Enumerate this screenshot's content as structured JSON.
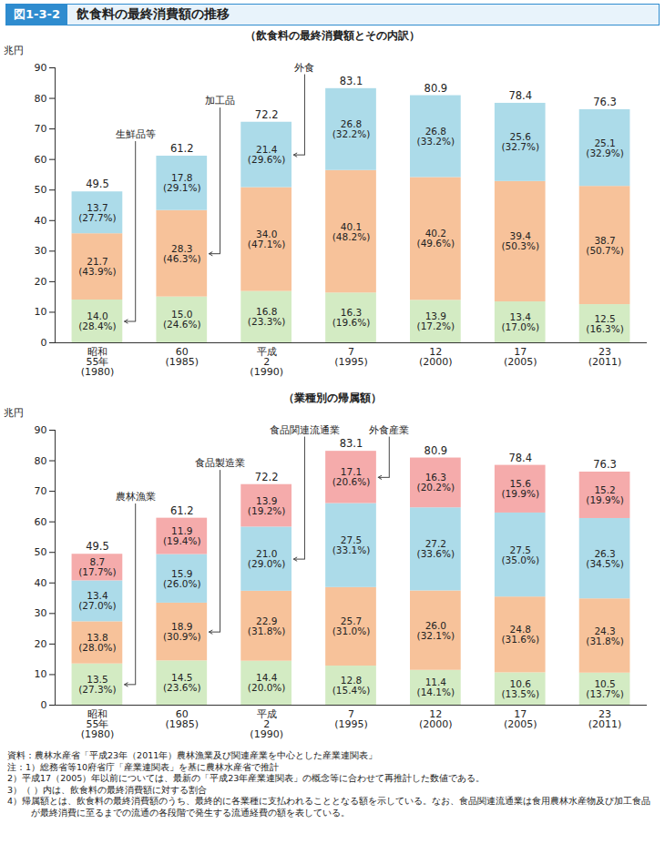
{
  "header": {
    "figure": "図1-3-2",
    "title": "飲食料の最終消費額の推移"
  },
  "chart_data": [
    {
      "type": "bar",
      "title": "（飲食料の最終消費額とその内訳）",
      "y_label": "兆円",
      "categories": [
        "昭和\n55年\n(1980)",
        "60\n(1985)",
        "平成\n2\n(1990)",
        "7\n(1995)",
        "12\n(2000)",
        "17\n(2005)",
        "23\n(2011)"
      ],
      "stacked": true,
      "data_labels": true,
      "grid": false,
      "ylim": [
        0,
        90
      ],
      "yticks": [
        0,
        10,
        20,
        30,
        40,
        50,
        60,
        70,
        80,
        90
      ],
      "totals": [
        49.5,
        61.2,
        72.2,
        83.1,
        80.9,
        78.4,
        76.3
      ],
      "series": [
        {
          "name": "生鮮品等",
          "color": "#d3ebc3",
          "values": [
            14.0,
            15.0,
            16.8,
            16.3,
            13.9,
            13.4,
            12.5
          ],
          "value_labels": [
            "14.0",
            "15.0",
            "16.8",
            "16.3",
            "13.9",
            "13.4",
            "12.5"
          ],
          "share_labels": [
            "(28.4%)",
            "(24.6%)",
            "(23.3%)",
            "(19.6%)",
            "(17.2%)",
            "(17.0%)",
            "(16.3%)"
          ]
        },
        {
          "name": "加工品",
          "color": "#f7c29a",
          "values": [
            21.7,
            28.3,
            34.0,
            40.1,
            40.2,
            39.4,
            38.7
          ],
          "value_labels": [
            "21.7",
            "28.3",
            "34.0",
            "40.1",
            "40.2",
            "39.4",
            "38.7"
          ],
          "share_labels": [
            "(43.9%)",
            "(46.3%)",
            "(47.1%)",
            "(48.2%)",
            "(49.6%)",
            "(50.3%)",
            "(50.7%)"
          ]
        },
        {
          "name": "外食",
          "color": "#acdbe9",
          "values": [
            13.7,
            17.8,
            21.4,
            26.8,
            26.8,
            25.6,
            25.1
          ],
          "value_labels": [
            "13.7",
            "17.8",
            "21.4",
            "26.8",
            "26.8",
            "25.6",
            "25.1"
          ],
          "share_labels": [
            "(27.7%)",
            "(29.1%)",
            "(29.6%)",
            "(32.2%)",
            "(33.2%)",
            "(32.7%)",
            "(32.9%)"
          ]
        }
      ]
    },
    {
      "type": "bar",
      "title": "（業種別の帰属額）",
      "y_label": "兆円",
      "categories": [
        "昭和\n55年\n(1980)",
        "60\n(1985)",
        "平成\n2\n(1990)",
        "7\n(1995)",
        "12\n(2000)",
        "17\n(2005)",
        "23\n(2011)"
      ],
      "stacked": true,
      "data_labels": true,
      "grid": false,
      "ylim": [
        0,
        90
      ],
      "yticks": [
        0,
        10,
        20,
        30,
        40,
        50,
        60,
        70,
        80,
        90
      ],
      "totals": [
        49.5,
        61.2,
        72.2,
        83.1,
        80.9,
        78.4,
        76.3
      ],
      "series": [
        {
          "name": "農林漁業",
          "color": "#d3ebc3",
          "values": [
            13.5,
            14.5,
            14.4,
            12.8,
            11.4,
            10.6,
            10.5
          ],
          "value_labels": [
            "13.5",
            "14.5",
            "14.4",
            "12.8",
            "11.4",
            "10.6",
            "10.5"
          ],
          "share_labels": [
            "(27.3%)",
            "(23.6%)",
            "(20.0%)",
            "(15.4%)",
            "(14.1%)",
            "(13.5%)",
            "(13.7%)"
          ]
        },
        {
          "name": "食品製造業",
          "color": "#f7c29a",
          "values": [
            13.8,
            18.9,
            22.9,
            25.7,
            26.0,
            24.8,
            24.3
          ],
          "value_labels": [
            "13.8",
            "18.9",
            "22.9",
            "25.7",
            "26.0",
            "24.8",
            "24.3"
          ],
          "share_labels": [
            "(28.0%)",
            "(30.9%)",
            "(31.8%)",
            "(31.0%)",
            "(32.1%)",
            "(31.6%)",
            "(31.8%)"
          ]
        },
        {
          "name": "食品関連流通業",
          "color": "#acdbe9",
          "values": [
            13.4,
            15.9,
            21.0,
            27.5,
            27.2,
            27.5,
            26.3
          ],
          "value_labels": [
            "13.4",
            "15.9",
            "21.0",
            "27.5",
            "27.2",
            "27.5",
            "26.3"
          ],
          "share_labels": [
            "(27.0%)",
            "(26.0%)",
            "(29.0%)",
            "(33.1%)",
            "(33.6%)",
            "(35.0%)",
            "(34.5%)"
          ]
        },
        {
          "name": "外食産業",
          "color": "#f5abab",
          "values": [
            8.7,
            11.9,
            13.9,
            17.1,
            16.3,
            15.6,
            15.2
          ],
          "value_labels": [
            "8.7",
            "11.9",
            "13.9",
            "17.1",
            "16.3",
            "15.6",
            "15.2"
          ],
          "share_labels": [
            "(17.7%)",
            "(19.4%)",
            "(19.2%)",
            "(20.6%)",
            "(20.2%)",
            "(19.9%)",
            "(19.9%)"
          ]
        }
      ]
    }
  ],
  "notes": [
    "資料：農林水産省「平成23年（2011年）農林漁業及び関連産業を中心とした産業連関表」",
    "注：1）総務省等10府省庁「産業連関表」を基に農林水産省で推計",
    "2）平成17（2005）年以前については、最新の「平成23年産業連関表」の概念等に合わせて再推計した数値である。",
    "3）（ ）内は、飲食料の最終消費額に対する割合",
    "4）帰属額とは、飲食料の最終消費額のうち、最終的に各業種に支払われることとなる額を示している。なお、食品関連流通業は食用農林水産物及び加工食品が最終消費に至るまでの流通の各段階で発生する流通経費の額を表している。"
  ]
}
